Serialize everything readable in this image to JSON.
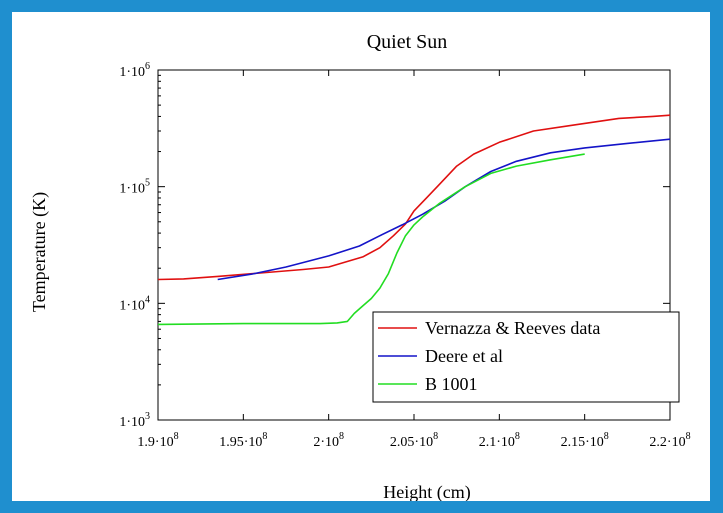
{
  "chart_data": {
    "type": "line",
    "title": "Quiet Sun",
    "xlabel": "Height (cm)",
    "ylabel": "Temperature (K)",
    "x_scale": "linear",
    "y_scale": "log",
    "xlim": [
      190000000,
      220000000
    ],
    "ylim": [
      1000,
      1000000
    ],
    "grid": false,
    "legend_position": "bottom-right",
    "x_ticks": [
      {
        "value": 190000000,
        "mantissa": "1.9",
        "exp": "8"
      },
      {
        "value": 195000000,
        "mantissa": "1.95",
        "exp": "8"
      },
      {
        "value": 200000000,
        "mantissa": "2",
        "exp": "8"
      },
      {
        "value": 205000000,
        "mantissa": "2.05",
        "exp": "8"
      },
      {
        "value": 210000000,
        "mantissa": "2.1",
        "exp": "8"
      },
      {
        "value": 215000000,
        "mantissa": "2.15",
        "exp": "8"
      },
      {
        "value": 220000000,
        "mantissa": "2.2",
        "exp": "8"
      }
    ],
    "y_ticks": [
      {
        "value": 1000,
        "mantissa": "1",
        "exp": "3"
      },
      {
        "value": 10000,
        "mantissa": "1",
        "exp": "4"
      },
      {
        "value": 100000,
        "mantissa": "1",
        "exp": "5"
      },
      {
        "value": 1000000,
        "mantissa": "1",
        "exp": "6"
      }
    ],
    "series": [
      {
        "name": "Vernazza & Reeves data",
        "color": "#e01010",
        "points": [
          [
            190000000,
            16000
          ],
          [
            191500000,
            16200
          ],
          [
            193500000,
            17000
          ],
          [
            196000000,
            18200
          ],
          [
            198500000,
            19500
          ],
          [
            200000000,
            20500
          ],
          [
            202000000,
            25000
          ],
          [
            203000000,
            30000
          ],
          [
            203800000,
            38000
          ],
          [
            204500000,
            48000
          ],
          [
            205000000,
            62000
          ],
          [
            205800000,
            82000
          ],
          [
            206500000,
            105000
          ],
          [
            207500000,
            150000
          ],
          [
            208500000,
            190000
          ],
          [
            210000000,
            240000
          ],
          [
            212000000,
            300000
          ],
          [
            214500000,
            340000
          ],
          [
            217000000,
            385000
          ],
          [
            219000000,
            400000
          ],
          [
            220000000,
            410000
          ]
        ]
      },
      {
        "name": "Deere et al",
        "color": "#1414c8",
        "points": [
          [
            193500000,
            16000
          ],
          [
            195500000,
            17800
          ],
          [
            197500000,
            20500
          ],
          [
            200000000,
            25500
          ],
          [
            201800000,
            31000
          ],
          [
            203000000,
            38000
          ],
          [
            204300000,
            47000
          ],
          [
            205500000,
            58000
          ],
          [
            206800000,
            75000
          ],
          [
            208000000,
            100000
          ],
          [
            209500000,
            135000
          ],
          [
            211000000,
            165000
          ],
          [
            213000000,
            195000
          ],
          [
            215000000,
            215000
          ],
          [
            217500000,
            235000
          ],
          [
            220000000,
            255000
          ]
        ]
      },
      {
        "name": "B 1001",
        "color": "#22dd22",
        "points": [
          [
            190000000,
            6600
          ],
          [
            195000000,
            6700
          ],
          [
            199500000,
            6700
          ],
          [
            200500000,
            6800
          ],
          [
            201100000,
            7000
          ],
          [
            201500000,
            8200
          ],
          [
            202000000,
            9500
          ],
          [
            202500000,
            11000
          ],
          [
            203000000,
            13500
          ],
          [
            203500000,
            18000
          ],
          [
            204000000,
            27000
          ],
          [
            204500000,
            38000
          ],
          [
            205000000,
            47000
          ],
          [
            205500000,
            55000
          ],
          [
            206500000,
            72000
          ],
          [
            208000000,
            100000
          ],
          [
            209500000,
            130000
          ],
          [
            211000000,
            150000
          ],
          [
            213000000,
            170000
          ],
          [
            215000000,
            190000
          ]
        ]
      }
    ]
  }
}
